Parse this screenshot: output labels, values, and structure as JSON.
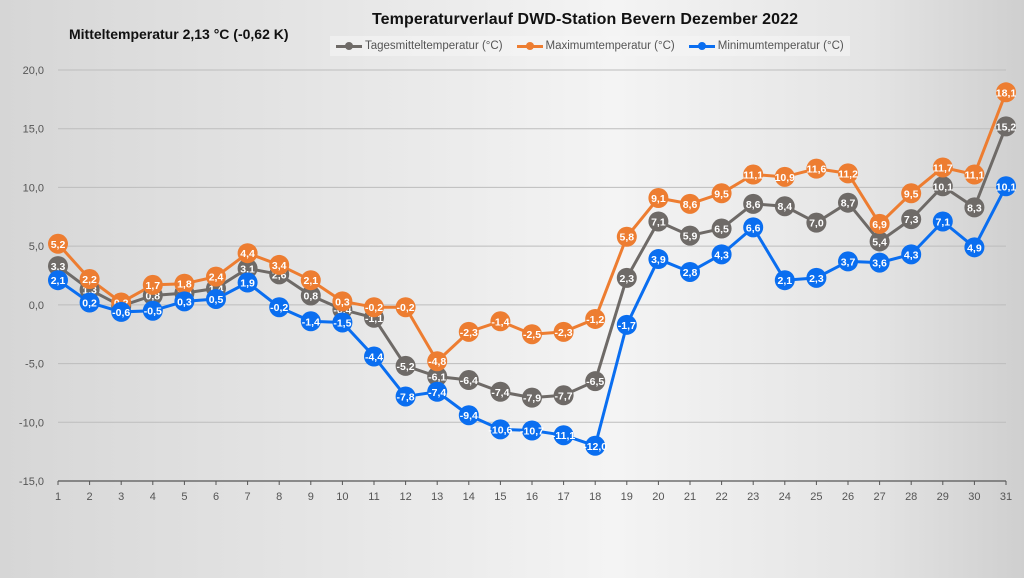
{
  "chart_data": {
    "type": "line",
    "title": "Temperaturverlauf  DWD-Station  Bevern Dezember 2022",
    "subtitle": "Mitteltemperatur 2,13 °C (-0,62 K)",
    "xlabel": "",
    "ylabel": "",
    "ylim": [
      -15,
      20
    ],
    "yticks": [
      "-15,0",
      "-10,0",
      "-5,0",
      "0,0",
      "5,0",
      "10,0",
      "15,0",
      "20,0"
    ],
    "ytick_values": [
      -15,
      -10,
      -5,
      0,
      5,
      10,
      15,
      20
    ],
    "grid": true,
    "legend_position": "top",
    "x": [
      1,
      2,
      3,
      4,
      5,
      6,
      7,
      8,
      9,
      10,
      11,
      12,
      13,
      14,
      15,
      16,
      17,
      18,
      19,
      20,
      21,
      22,
      23,
      24,
      25,
      26,
      27,
      28,
      29,
      30,
      31
    ],
    "series": [
      {
        "name": "Tagesmitteltemperatur (°C)",
        "color": "#6e6a67",
        "values": [
          3.3,
          1.3,
          -0.1,
          0.8,
          1.0,
          1.4,
          3.1,
          2.6,
          0.8,
          -0.4,
          -1.1,
          -5.2,
          -6.1,
          -6.4,
          -7.4,
          -7.9,
          -7.7,
          -6.5,
          2.3,
          7.1,
          5.9,
          6.5,
          8.6,
          8.4,
          7.0,
          8.7,
          5.4,
          7.3,
          10.1,
          8.3,
          15.2
        ]
      },
      {
        "name": "Maximumtemperatur (°C)",
        "color": "#ed7d31",
        "values": [
          5.2,
          2.2,
          0.2,
          1.7,
          1.8,
          2.4,
          4.4,
          3.4,
          2.1,
          0.3,
          -0.2,
          -0.2,
          -4.8,
          -2.3,
          -1.4,
          -2.5,
          -2.3,
          -1.2,
          5.8,
          9.1,
          8.6,
          9.5,
          11.1,
          10.9,
          11.6,
          11.2,
          6.9,
          9.5,
          11.7,
          11.1,
          18.1
        ]
      },
      {
        "name": "Minimumtemperatur (°C)",
        "color": "#0a6ef0",
        "values": [
          2.1,
          0.2,
          -0.6,
          -0.5,
          0.3,
          0.5,
          1.9,
          -0.2,
          -1.4,
          -1.5,
          -4.4,
          -7.8,
          -7.4,
          -9.4,
          -10.6,
          -10.7,
          -11.1,
          -12.0,
          -1.7,
          3.9,
          2.8,
          4.3,
          6.6,
          2.1,
          2.3,
          3.7,
          3.6,
          4.3,
          7.1,
          4.9,
          10.1
        ]
      }
    ]
  }
}
